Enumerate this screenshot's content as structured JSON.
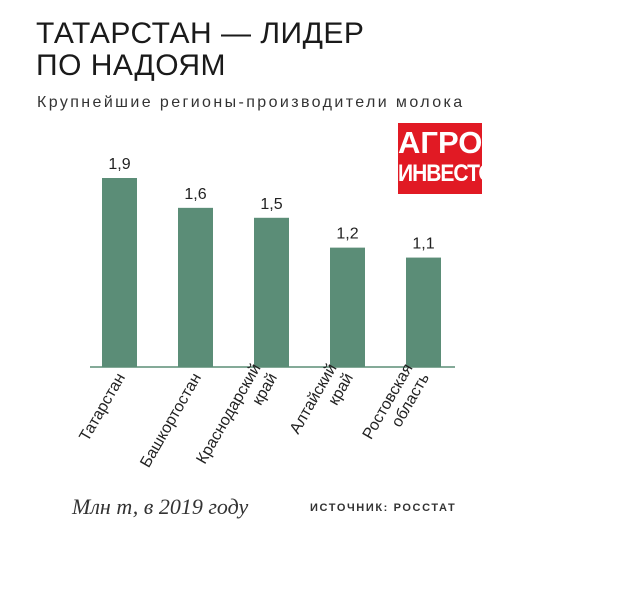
{
  "title": "ТАТАРСТАН — ЛИДЕР ПО НАДОЯМ",
  "subtitle": "Крупнейшие регионы-производители молока",
  "logo": {
    "line1": "АГРО",
    "line2": "ИНВЕСТОР",
    "color": "#e11a24"
  },
  "unit_note": "Млн т, в 2019 году",
  "source": "ИСТОЧНИК: РОССТАТ",
  "chart_data": {
    "type": "bar",
    "categories": [
      "Татарстан",
      "Башкортостан",
      "Краснодарский край",
      "Алтайский край",
      "Ростовская область"
    ],
    "category_lines": [
      [
        "Татарстан"
      ],
      [
        "Башкортостан"
      ],
      [
        "Краснодарский",
        "край"
      ],
      [
        "Алтайский",
        "край"
      ],
      [
        "Ростовская",
        "область"
      ]
    ],
    "values": [
      1.9,
      1.6,
      1.5,
      1.2,
      1.1
    ],
    "value_labels": [
      "1,9",
      "1,6",
      "1,5",
      "1,2",
      "1,1"
    ],
    "ylim": [
      0,
      1.9
    ],
    "bar_color": "#5b8d77",
    "grid": false
  }
}
